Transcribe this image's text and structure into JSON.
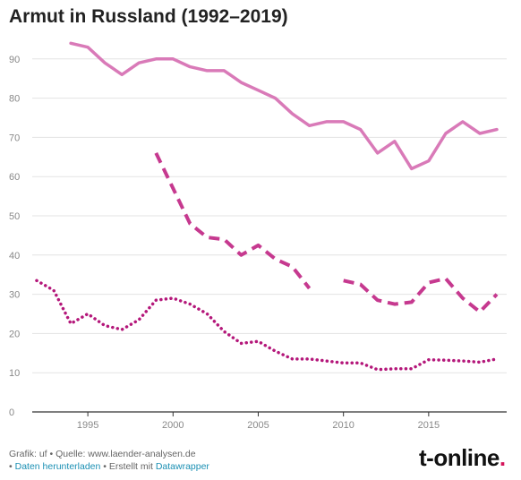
{
  "chart_data": {
    "type": "line",
    "title": "Armut in Russland (1992–2019)",
    "xlabel": "",
    "ylabel": "",
    "xlim": [
      1992,
      2019
    ],
    "ylim": [
      0,
      95
    ],
    "x_ticks": [
      1995,
      2000,
      2005,
      2010,
      2015
    ],
    "y_ticks": [
      0,
      10,
      20,
      30,
      40,
      50,
      60,
      70,
      80,
      90
    ],
    "grid": true,
    "series": [
      {
        "style": "solid",
        "color": "#d97ab8",
        "points": [
          [
            1994,
            94
          ],
          [
            1995,
            93
          ],
          [
            1996,
            89
          ],
          [
            1997,
            86
          ],
          [
            1998,
            89
          ],
          [
            1999,
            90
          ],
          [
            2000,
            90
          ],
          [
            2001,
            88
          ],
          [
            2002,
            87
          ],
          [
            2003,
            87
          ],
          [
            2004,
            84
          ],
          [
            2005,
            82
          ],
          [
            2006,
            80
          ],
          [
            2007,
            76
          ],
          [
            2008,
            73
          ],
          [
            2009,
            74
          ],
          [
            2010,
            74
          ],
          [
            2011,
            72
          ],
          [
            2012,
            66
          ],
          [
            2013,
            69
          ],
          [
            2014,
            62
          ],
          [
            2015,
            64
          ],
          [
            2016,
            71
          ],
          [
            2017,
            74
          ],
          [
            2018,
            71
          ],
          [
            2019,
            72
          ]
        ]
      },
      {
        "style": "dashed",
        "color": "#c6398f",
        "segments": [
          [
            [
              1999,
              66
            ],
            [
              2000,
              57
            ],
            [
              2001,
              48
            ],
            [
              2002,
              44.5
            ],
            [
              2003,
              44
            ],
            [
              2004,
              40
            ],
            [
              2005,
              42.5
            ],
            [
              2006,
              39
            ],
            [
              2007,
              37
            ],
            [
              2008,
              31.5
            ]
          ],
          [
            [
              2010,
              33.5
            ],
            [
              2011,
              32.5
            ],
            [
              2012,
              28.5
            ],
            [
              2013,
              27.5
            ],
            [
              2014,
              28
            ],
            [
              2015,
              33
            ],
            [
              2016,
              34
            ],
            [
              2017,
              29
            ],
            [
              2018,
              25.5
            ],
            [
              2019,
              30
            ]
          ]
        ]
      },
      {
        "style": "dotted",
        "color": "#b4177a",
        "points": [
          [
            1992,
            33.5
          ],
          [
            1993,
            31
          ],
          [
            1994,
            22.5
          ],
          [
            1995,
            25
          ],
          [
            1996,
            22
          ],
          [
            1997,
            21
          ],
          [
            1998,
            23.5
          ],
          [
            1999,
            28.5
          ],
          [
            2000,
            29
          ],
          [
            2001,
            27.5
          ],
          [
            2002,
            25
          ],
          [
            2003,
            20.5
          ],
          [
            2004,
            17.5
          ],
          [
            2005,
            18
          ],
          [
            2006,
            15.5
          ],
          [
            2007,
            13.5
          ],
          [
            2008,
            13.5
          ],
          [
            2009,
            13
          ],
          [
            2010,
            12.5
          ],
          [
            2011,
            12.5
          ],
          [
            2012,
            10.8
          ],
          [
            2013,
            11
          ],
          [
            2014,
            11
          ],
          [
            2015,
            13.3
          ],
          [
            2016,
            13.2
          ],
          [
            2017,
            13
          ],
          [
            2018,
            12.7
          ],
          [
            2019,
            13.5
          ]
        ]
      }
    ]
  },
  "footer": {
    "line1": "Grafik: uf • Quelle: www.laender-analysen.de",
    "bullet": "•",
    "download_label": "Daten herunterladen",
    "created_with": "• Erstellt mit",
    "datawrapper_label": "Datawrapper"
  },
  "logo": {
    "text": "t-online",
    "dot": "."
  }
}
